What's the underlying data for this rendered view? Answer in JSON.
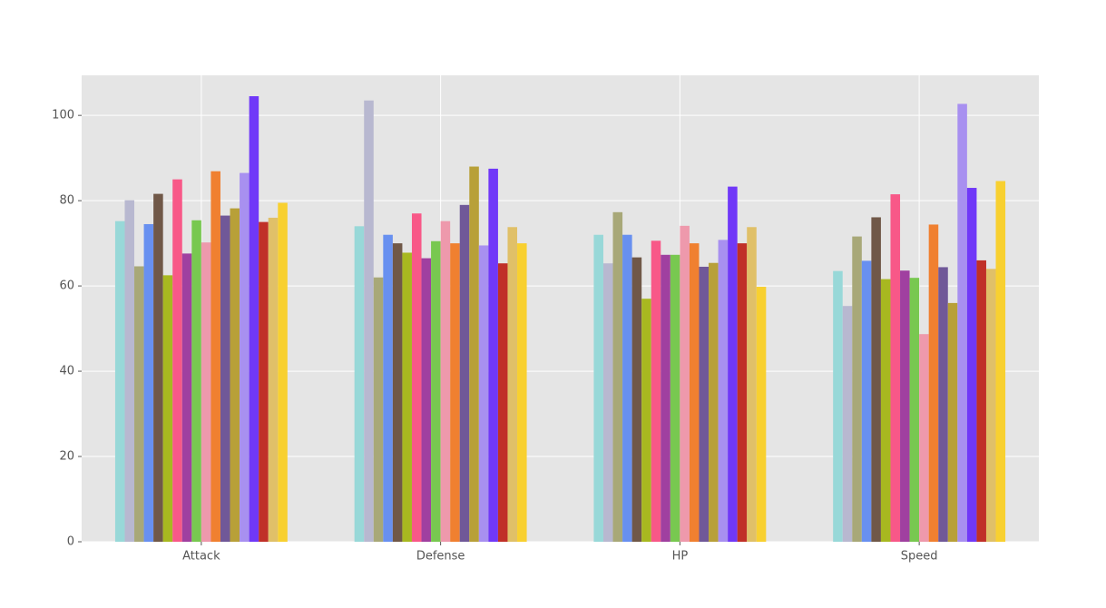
{
  "chart_data": {
    "type": "bar",
    "categories": [
      "Attack",
      "Defense",
      "HP",
      "Speed"
    ],
    "series": [
      {
        "color": "#98D8D8",
        "values": [
          75.2,
          74,
          72,
          63.5
        ]
      },
      {
        "color": "#B8B8D0",
        "values": [
          80.1,
          103.5,
          65.3,
          55.3
        ]
      },
      {
        "color": "#A8A878",
        "values": [
          64.6,
          62,
          77.3,
          71.6
        ]
      },
      {
        "color": "#6890F0",
        "values": [
          74.5,
          72,
          72,
          65.9
        ]
      },
      {
        "color": "#705848",
        "values": [
          81.6,
          70,
          66.7,
          76.1
        ]
      },
      {
        "color": "#A8B820",
        "values": [
          62.5,
          67.8,
          57,
          61.6
        ]
      },
      {
        "color": "#F85888",
        "values": [
          85,
          77,
          70.6,
          81.5
        ]
      },
      {
        "color": "#A040A0",
        "values": [
          67.6,
          66.5,
          67.3,
          63.6
        ]
      },
      {
        "color": "#78C850",
        "values": [
          75.4,
          70.5,
          67.3,
          61.9
        ]
      },
      {
        "color": "#EE99AC",
        "values": [
          70.2,
          75.2,
          74.1,
          48.7
        ]
      },
      {
        "color": "#F08030",
        "values": [
          86.9,
          70,
          70,
          74.4
        ]
      },
      {
        "color": "#705898",
        "values": [
          76.5,
          79,
          64.5,
          64.4
        ]
      },
      {
        "color": "#B8A038",
        "values": [
          78.2,
          88,
          65.4,
          56
        ]
      },
      {
        "color": "#A890F0",
        "values": [
          86.5,
          69.5,
          70.8,
          102.7
        ]
      },
      {
        "color": "#7038F8",
        "values": [
          104.5,
          87.5,
          83.3,
          83
        ]
      },
      {
        "color": "#C03028",
        "values": [
          75,
          65.3,
          70,
          66
        ]
      },
      {
        "color": "#E0C068",
        "values": [
          76,
          73.8,
          73.8,
          64
        ]
      },
      {
        "color": "#F8D030",
        "values": [
          79.5,
          70,
          59.8,
          84.6
        ]
      }
    ],
    "ylim": [
      0,
      109.4
    ],
    "yticks": [
      0,
      20,
      40,
      60,
      80,
      100
    ],
    "grid": true
  }
}
